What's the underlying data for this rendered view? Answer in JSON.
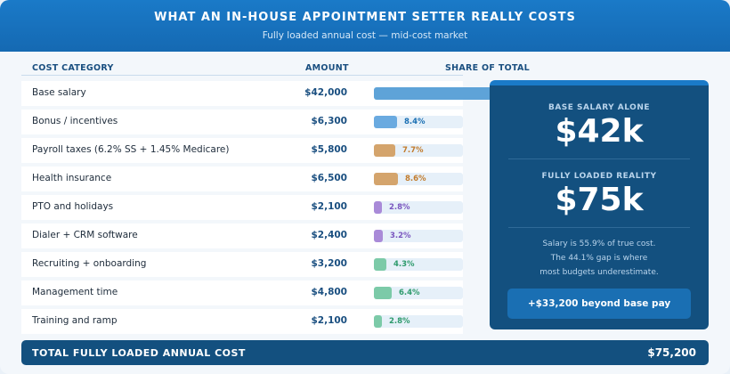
{
  "header": {
    "title": "WHAT AN IN-HOUSE APPOINTMENT SETTER REALLY COSTS",
    "subtitle": "Fully loaded annual cost — mid-cost market"
  },
  "columns": {
    "category": "COST CATEGORY",
    "amount": "AMOUNT",
    "share": "SHARE OF TOTAL"
  },
  "rows": [
    {
      "label": "Base salary",
      "amount": "$42,000",
      "share": 55.9,
      "share_label": "",
      "color": "#5ea3d8",
      "label_color": "#1a6fb3"
    },
    {
      "label": "Bonus / incentives",
      "amount": "$6,300",
      "share": 8.4,
      "share_label": "8.4%",
      "color": "#6aaae0",
      "label_color": "#1a6fb3"
    },
    {
      "label": "Payroll taxes (6.2% SS + 1.45% Medicare)",
      "amount": "$5,800",
      "share": 7.7,
      "share_label": "7.7%",
      "color": "#d4a46c",
      "label_color": "#c27b2c"
    },
    {
      "label": "Health insurance",
      "amount": "$6,500",
      "share": 8.6,
      "share_label": "8.6%",
      "color": "#d4a46c",
      "label_color": "#c27b2c"
    },
    {
      "label": "PTO and holidays",
      "amount": "$2,100",
      "share": 2.8,
      "share_label": "2.8%",
      "color": "#a98ad8",
      "label_color": "#7a56bf"
    },
    {
      "label": "Dialer + CRM software",
      "amount": "$2,400",
      "share": 3.2,
      "share_label": "3.2%",
      "color": "#a98ad8",
      "label_color": "#7a56bf"
    },
    {
      "label": "Recruiting + onboarding",
      "amount": "$3,200",
      "share": 4.3,
      "share_label": "4.3%",
      "color": "#7ccaa8",
      "label_color": "#2e9a6c"
    },
    {
      "label": "Management time",
      "amount": "$4,800",
      "share": 6.4,
      "share_label": "6.4%",
      "color": "#7ccaa8",
      "label_color": "#2e9a6c"
    },
    {
      "label": "Training and ramp",
      "amount": "$2,100",
      "share": 2.8,
      "share_label": "2.8%",
      "color": "#7ccaa8",
      "label_color": "#2e9a6c"
    }
  ],
  "panel": {
    "base_label": "BASE SALARY ALONE",
    "base_value": "$42k",
    "loaded_label": "FULLY LOADED REALITY",
    "loaded_value": "$75k",
    "note_line1": "Salary is 55.9% of true cost.",
    "note_line2": "The 44.1% gap is where",
    "note_line3": "most budgets underestimate.",
    "pill": "+$33,200 beyond base pay"
  },
  "total": {
    "label": "TOTAL FULLY LOADED ANNUAL COST",
    "value": "$75,200"
  }
}
